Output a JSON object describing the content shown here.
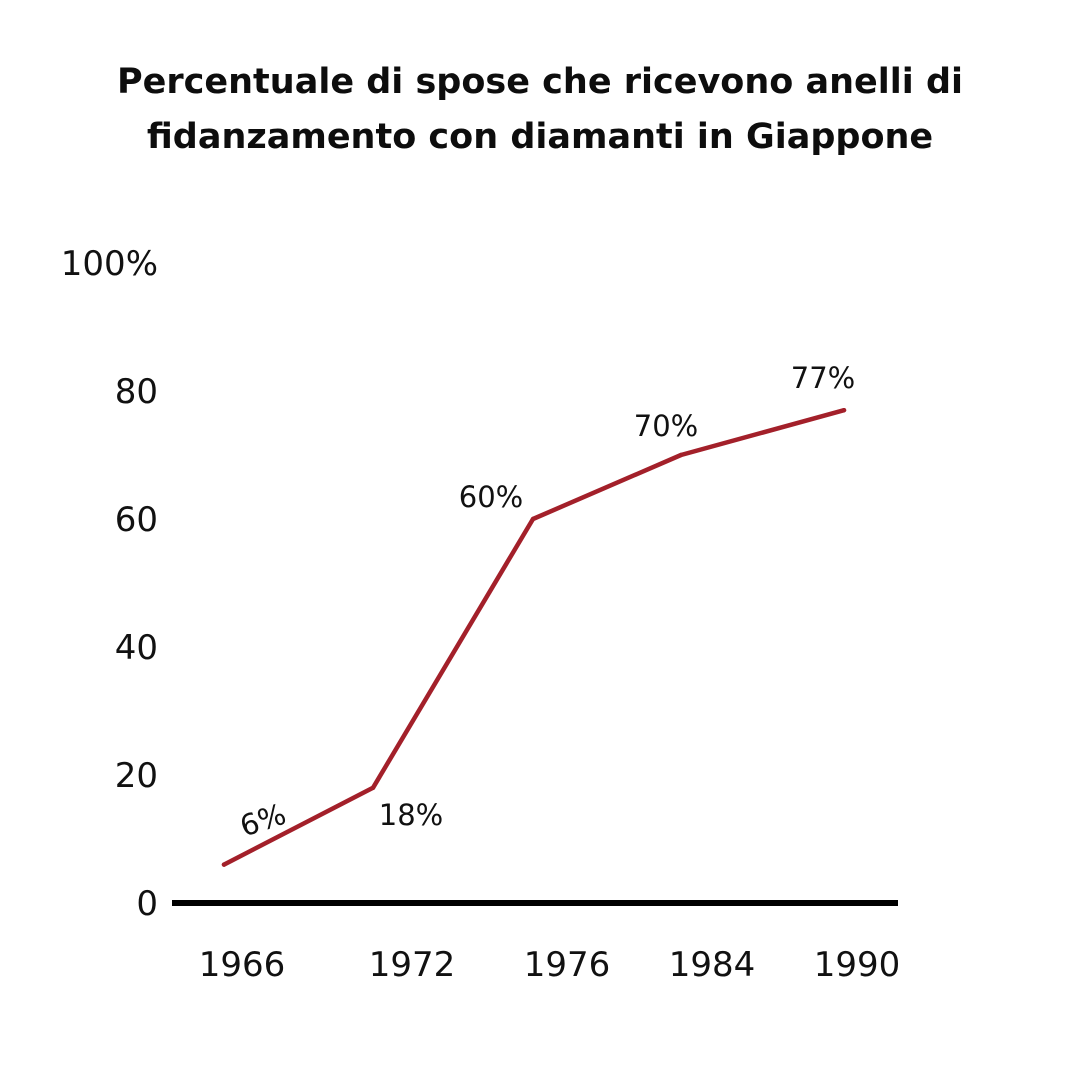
{
  "chart_data": {
    "type": "line",
    "title": "Percentuale di spose che ricevono anelli di fidanzamento con diamanti in Giappone",
    "categories": [
      "1966",
      "1972",
      "1976",
      "1984",
      "1990"
    ],
    "series": [
      {
        "values": [
          6,
          18,
          60,
          70,
          77
        ],
        "data_labels": [
          "6%",
          "18%",
          "60%",
          "70%",
          "77%"
        ]
      }
    ],
    "y_ticks": [
      0,
      20,
      40,
      60,
      80,
      100
    ],
    "y_tick_labels": [
      "0",
      "20",
      "40",
      "60",
      "80",
      "100%"
    ],
    "ylim": [
      0,
      100
    ],
    "grid": false,
    "line_color": "#a3202a",
    "axis_color": "#000000"
  }
}
